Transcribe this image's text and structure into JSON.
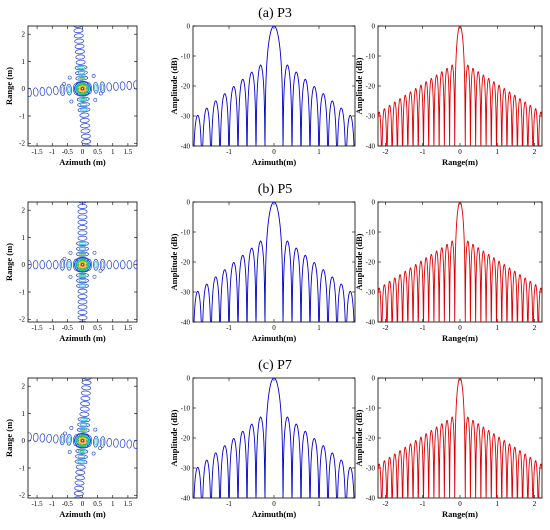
{
  "chart_data": [
    {
      "panel": "P3",
      "title": "(a) P3",
      "contour": {
        "type": "contour",
        "xlabel": "Azimuth (m)",
        "ylabel": "Range (m)",
        "xlim": [
          -1.8,
          1.8
        ],
        "ylim": [
          -2.1,
          2.3
        ],
        "xticks": [
          -1.5,
          -1,
          -0.5,
          0,
          0.5,
          1,
          1.5
        ],
        "xticklabels": [
          "-1.5",
          "-1",
          "-0.5",
          "0",
          "0.5",
          "1",
          "1.5"
        ],
        "yticks": [
          2,
          1,
          0,
          -1,
          -2
        ],
        "yticklabels": [
          "2",
          "1",
          "0",
          "-1",
          "-2"
        ],
        "tilt_deg": -4
      },
      "azimuth_profile": {
        "type": "line",
        "color": "#0000cc",
        "xlabel": "Azimuth(m)",
        "ylabel": "Amplitude (dB)",
        "xlim": [
          -1.8,
          1.8
        ],
        "ylim": [
          -40,
          0
        ],
        "xticks": [
          -1,
          0,
          1
        ],
        "xticklabels": [
          "-1",
          "0",
          "1"
        ],
        "yticks": [
          0,
          -10,
          -20,
          -30,
          -40
        ],
        "yticklabels": [
          "0",
          "-10",
          "-20",
          "-30",
          "-40"
        ],
        "mainlobe_halfwidth": 0.2,
        "sidelobe_first_db": -13,
        "sidelobe_decay_db_per_m": 12
      },
      "range_profile": {
        "type": "line",
        "color": "#dd0000",
        "xlabel": "Range(m)",
        "ylabel": "Amplitude (dB)",
        "xlim": [
          -2.2,
          2.2
        ],
        "ylim": [
          -40,
          0
        ],
        "xticks": [
          -2,
          -1,
          0,
          1,
          2
        ],
        "xticklabels": [
          "-2",
          "-1",
          "0",
          "1",
          "2"
        ],
        "yticks": [
          0,
          -10,
          -20,
          -30,
          -40
        ],
        "yticklabels": [
          "0",
          "-10",
          "-20",
          "-30",
          "-40"
        ],
        "mainlobe_halfwidth": 0.14,
        "sidelobe_first_db": -13,
        "sidelobe_decay_db_per_m": 8
      }
    },
    {
      "panel": "P5",
      "title": "(b) P5",
      "contour": {
        "type": "contour",
        "xlabel": "Azimuth (m)",
        "ylabel": "Range (m)",
        "xlim": [
          -1.8,
          1.8
        ],
        "ylim": [
          -2.1,
          2.3
        ],
        "xticks": [
          -1.5,
          -1,
          -0.5,
          0,
          0.5,
          1,
          1.5
        ],
        "xticklabels": [
          "-1.5",
          "-1",
          "-0.5",
          "0",
          "0.5",
          "1",
          "1.5"
        ],
        "yticks": [
          2,
          1,
          0,
          -1,
          -2
        ],
        "yticklabels": [
          "2",
          "1",
          "0",
          "-1",
          "-2"
        ],
        "tilt_deg": 0
      },
      "azimuth_profile": {
        "type": "line",
        "color": "#0000cc",
        "xlabel": "Azimuth(m)",
        "ylabel": "Amplitude (dB)",
        "xlim": [
          -1.8,
          1.8
        ],
        "ylim": [
          -40,
          0
        ],
        "xticks": [
          -1,
          0,
          1
        ],
        "xticklabels": [
          "-1",
          "0",
          "1"
        ],
        "yticks": [
          0,
          -10,
          -20,
          -30,
          -40
        ],
        "yticklabels": [
          "0",
          "-10",
          "-20",
          "-30",
          "-40"
        ],
        "mainlobe_halfwidth": 0.2,
        "sidelobe_first_db": -13,
        "sidelobe_decay_db_per_m": 12
      },
      "range_profile": {
        "type": "line",
        "color": "#dd0000",
        "xlabel": "Range(m)",
        "ylabel": "Amplitude (dB)",
        "xlim": [
          -2.2,
          2.2
        ],
        "ylim": [
          -40,
          0
        ],
        "xticks": [
          -2,
          -1,
          0,
          1,
          2
        ],
        "xticklabels": [
          "-2",
          "-1",
          "0",
          "1",
          "2"
        ],
        "yticks": [
          0,
          -10,
          -20,
          -30,
          -40
        ],
        "yticklabels": [
          "0",
          "-10",
          "-20",
          "-30",
          "-40"
        ],
        "mainlobe_halfwidth": 0.14,
        "sidelobe_first_db": -13,
        "sidelobe_decay_db_per_m": 8
      }
    },
    {
      "panel": "P7",
      "title": "(c) P7",
      "contour": {
        "type": "contour",
        "xlabel": "Azimuth (m)",
        "ylabel": "Range (m)",
        "xlim": [
          -1.8,
          1.8
        ],
        "ylim": [
          -2.1,
          2.3
        ],
        "xticks": [
          -1.5,
          -1,
          -0.5,
          0,
          0.5,
          1,
          1.5
        ],
        "xticklabels": [
          "-1.5",
          "-1",
          "-0.5",
          "0",
          "0.5",
          "1",
          "1.5"
        ],
        "yticks": [
          2,
          1,
          0,
          -1,
          -2
        ],
        "yticklabels": [
          "2",
          "1",
          "0",
          "-1",
          "-2"
        ],
        "tilt_deg": 4
      },
      "azimuth_profile": {
        "type": "line",
        "color": "#0000cc",
        "xlabel": "Azimuth(m)",
        "ylabel": "Amplitude (dB)",
        "xlim": [
          -1.8,
          1.8
        ],
        "ylim": [
          -40,
          0
        ],
        "xticks": [
          -1,
          0,
          1
        ],
        "xticklabels": [
          "-1",
          "0",
          "1"
        ],
        "yticks": [
          0,
          -10,
          -20,
          -30,
          -40
        ],
        "yticklabels": [
          "0",
          "-10",
          "-20",
          "-30",
          "-40"
        ],
        "mainlobe_halfwidth": 0.2,
        "sidelobe_first_db": -13,
        "sidelobe_decay_db_per_m": 12
      },
      "range_profile": {
        "type": "line",
        "color": "#dd0000",
        "xlabel": "Range(m)",
        "ylabel": "Amplitude (dB)",
        "xlim": [
          -2.2,
          2.2
        ],
        "ylim": [
          -40,
          0
        ],
        "xticks": [
          -2,
          -1,
          0,
          1,
          2
        ],
        "xticklabels": [
          "-2",
          "-1",
          "0",
          "1",
          "2"
        ],
        "yticks": [
          0,
          -10,
          -20,
          -30,
          -40
        ],
        "yticklabels": [
          "0",
          "-10",
          "-20",
          "-30",
          "-40"
        ],
        "mainlobe_halfwidth": 0.14,
        "sidelobe_first_db": -13,
        "sidelobe_decay_db_per_m": 8
      }
    }
  ]
}
